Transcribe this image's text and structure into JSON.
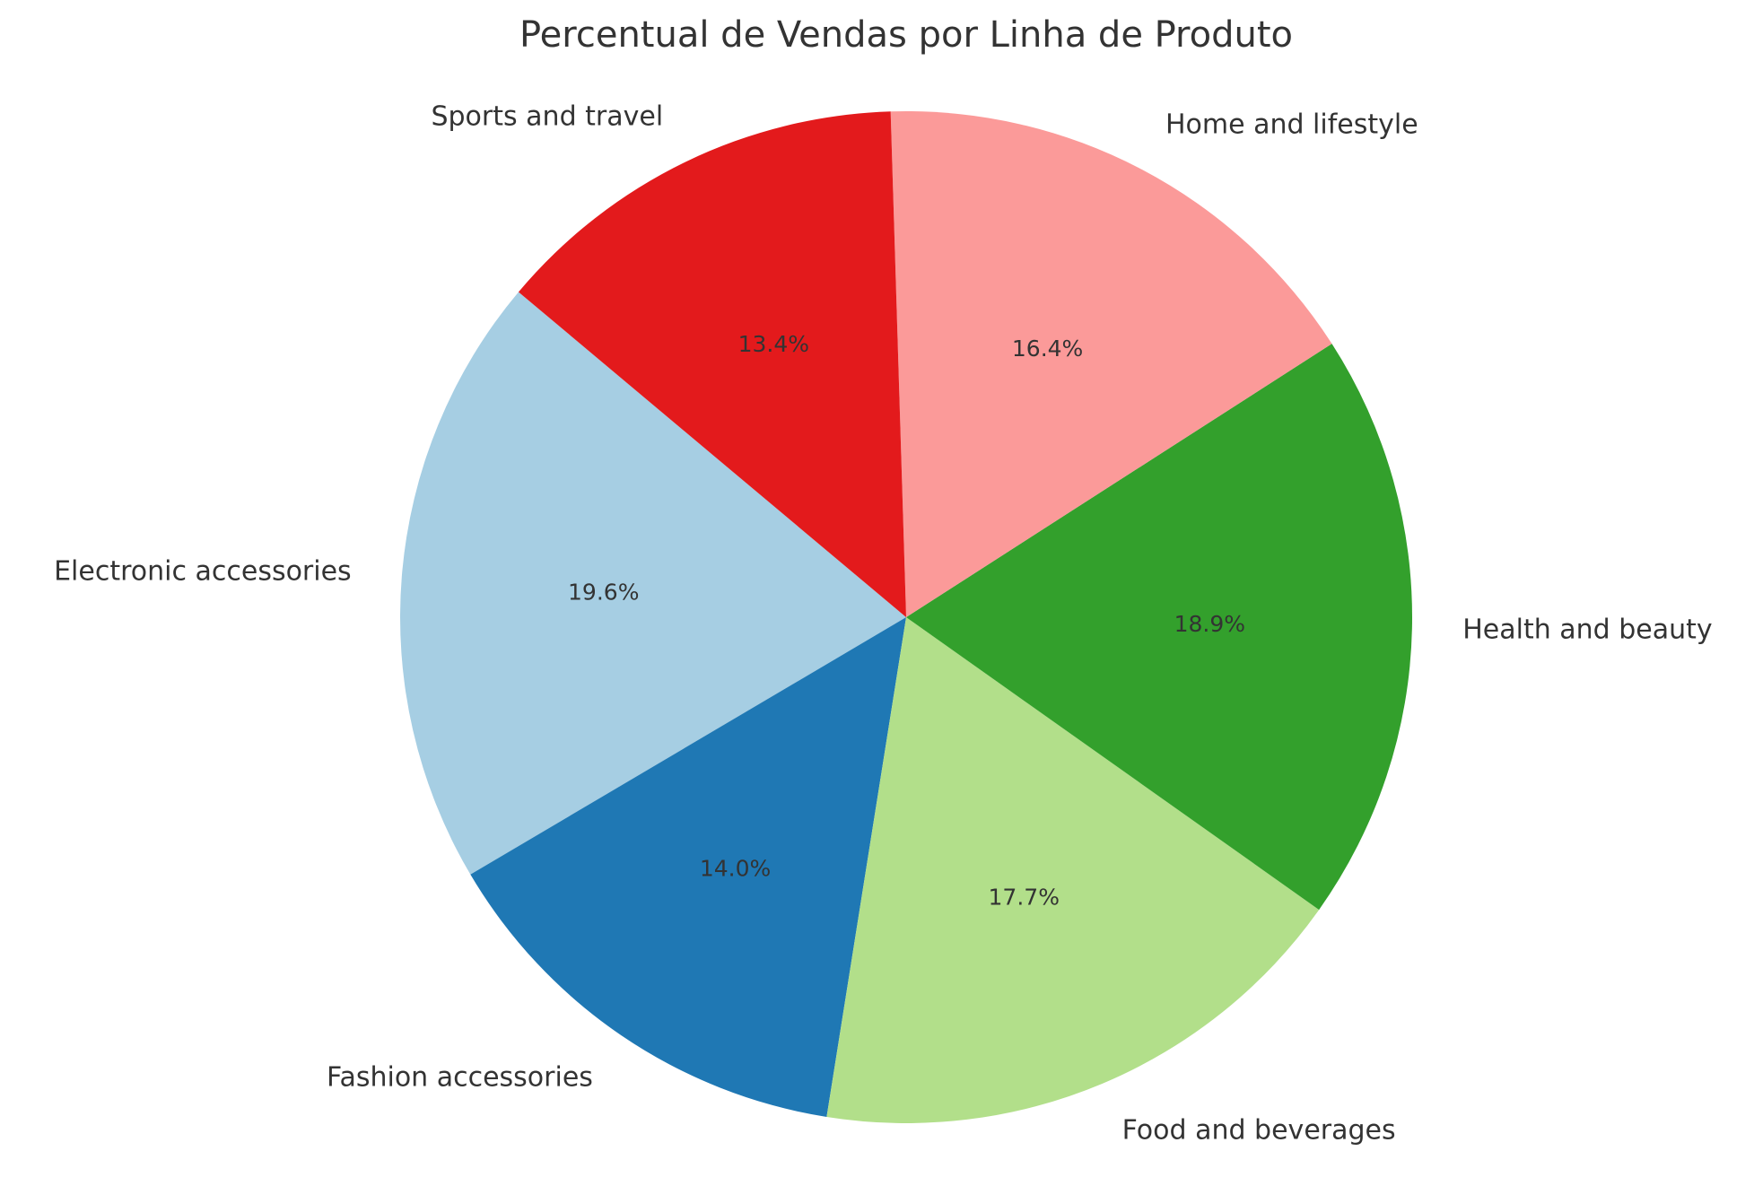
{
  "chart_data": {
    "type": "pie",
    "title": "Percentual de Vendas por Linha de Produto",
    "categories": [
      "Electronic accessories",
      "Fashion accessories",
      "Food and beverages",
      "Health and beauty",
      "Home and lifestyle",
      "Sports and travel"
    ],
    "values": [
      19.6,
      14.0,
      17.7,
      18.9,
      16.4,
      13.4
    ],
    "percent_labels": [
      "19.6%",
      "14.0%",
      "17.7%",
      "18.9%",
      "16.4%",
      "13.4%"
    ],
    "colors": [
      "#a6cee3",
      "#1f78b4",
      "#b2df8a",
      "#33a02c",
      "#fb9a99",
      "#e31a1c"
    ],
    "start_angle_deg": 140,
    "direction": "counterclockwise",
    "legend": "none"
  }
}
